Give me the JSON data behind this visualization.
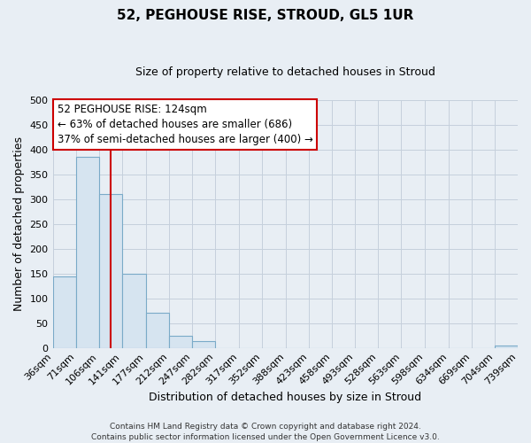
{
  "title": "52, PEGHOUSE RISE, STROUD, GL5 1UR",
  "subtitle": "Size of property relative to detached houses in Stroud",
  "xlabel": "Distribution of detached houses by size in Stroud",
  "ylabel": "Number of detached properties",
  "bar_left_edges": [
    36,
    71,
    106,
    141,
    177,
    212,
    247,
    282,
    317,
    352,
    388,
    423,
    458,
    493,
    528,
    563,
    598,
    634,
    669,
    704
  ],
  "bar_widths": [
    35,
    35,
    35,
    36,
    35,
    35,
    35,
    35,
    35,
    36,
    35,
    35,
    35,
    35,
    35,
    35,
    36,
    35,
    35,
    35
  ],
  "bar_heights": [
    144,
    385,
    310,
    150,
    70,
    25,
    13,
    0,
    0,
    0,
    0,
    0,
    0,
    0,
    0,
    0,
    0,
    0,
    0,
    5
  ],
  "bar_color": "#d6e4f0",
  "bar_edgecolor": "#7aaac8",
  "vline_x": 124,
  "vline_color": "#cc0000",
  "ylim": [
    0,
    500
  ],
  "xlim": [
    36,
    739
  ],
  "yticks": [
    0,
    50,
    100,
    150,
    200,
    250,
    300,
    350,
    400,
    450,
    500
  ],
  "xtick_labels": [
    "36sqm",
    "71sqm",
    "106sqm",
    "141sqm",
    "177sqm",
    "212sqm",
    "247sqm",
    "282sqm",
    "317sqm",
    "352sqm",
    "388sqm",
    "423sqm",
    "458sqm",
    "493sqm",
    "528sqm",
    "563sqm",
    "598sqm",
    "634sqm",
    "669sqm",
    "704sqm",
    "739sqm"
  ],
  "annotation_title": "52 PEGHOUSE RISE: 124sqm",
  "annotation_line1": "← 63% of detached houses are smaller (686)",
  "annotation_line2": "37% of semi-detached houses are larger (400) →",
  "annotation_box_facecolor": "#ffffff",
  "annotation_box_edgecolor": "#cc0000",
  "footer_line1": "Contains HM Land Registry data © Crown copyright and database right 2024.",
  "footer_line2": "Contains public sector information licensed under the Open Government Licence v3.0.",
  "fig_facecolor": "#e8eef4",
  "plot_facecolor": "#e8eef4",
  "grid_color": "#c5d0dc",
  "title_fontsize": 11,
  "subtitle_fontsize": 9,
  "ylabel_fontsize": 9,
  "xlabel_fontsize": 9,
  "tick_fontsize": 8,
  "annotation_fontsize": 8.5,
  "footer_fontsize": 6.5
}
